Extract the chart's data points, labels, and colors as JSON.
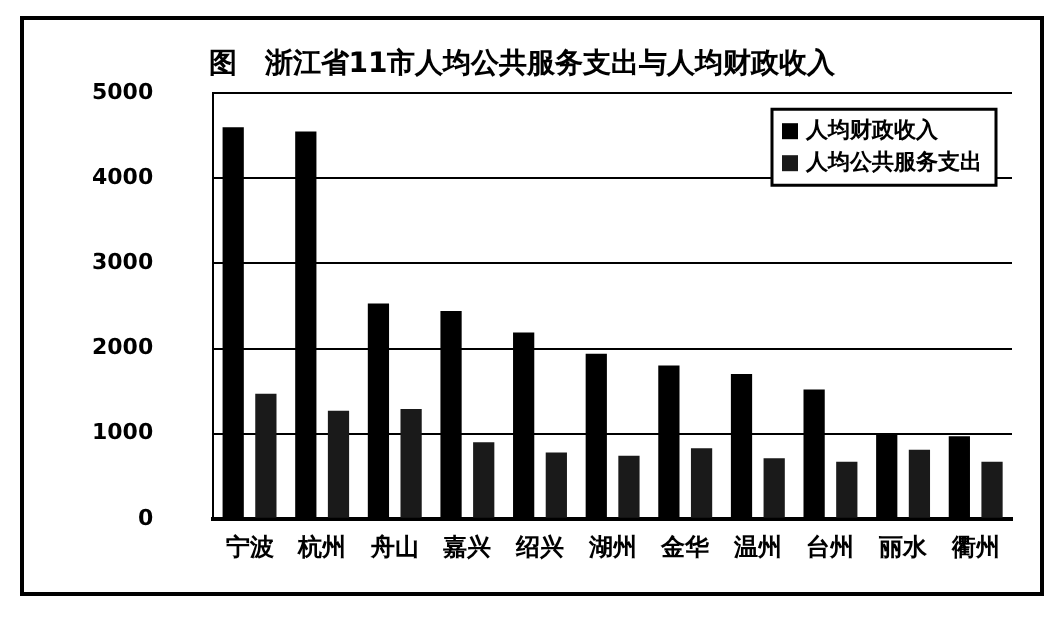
{
  "chart_data": {
    "type": "bar",
    "title": "图　浙江省11市人均公共服务支出与人均财政收入",
    "categories": [
      "宁波",
      "杭州",
      "舟山",
      "嘉兴",
      "绍兴",
      "湖州",
      "金华",
      "温州",
      "台州",
      "丽水",
      "衢州"
    ],
    "series": [
      {
        "name": "人均财政收入",
        "color": "#000000",
        "values": [
          4600,
          4550,
          2530,
          2440,
          2190,
          1940,
          1800,
          1700,
          1520,
          990,
          970
        ]
      },
      {
        "name": "人均公共服务支出",
        "color": "#1a1a1a",
        "values": [
          1470,
          1270,
          1290,
          900,
          780,
          740,
          830,
          710,
          670,
          810,
          670
        ]
      }
    ],
    "ylim": [
      0,
      5000
    ],
    "yticks": [
      0,
      1000,
      2000,
      3000,
      4000,
      5000
    ],
    "grid": "y",
    "legend": "top right"
  }
}
